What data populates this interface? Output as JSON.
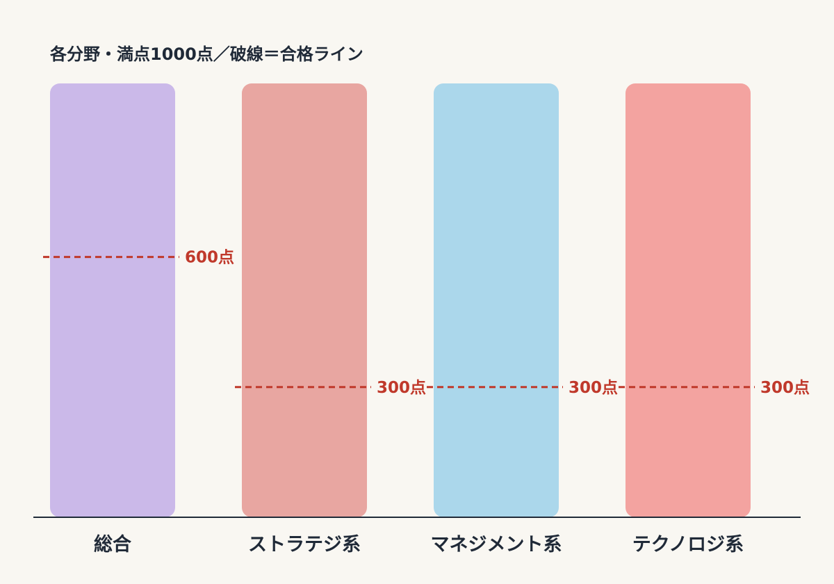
{
  "chart_data": {
    "type": "bar",
    "title": "各分野・満点1000点／破線＝合格ライン",
    "xlabel": "",
    "ylabel": "",
    "ylim": [
      0,
      1000
    ],
    "categories": [
      "総合",
      "ストラテジ系",
      "マネジメント系",
      "テクノロジ系"
    ],
    "values": [
      1000,
      1000,
      1000,
      1000
    ],
    "pass_lines": [
      {
        "category": "総合",
        "value": 600,
        "label": "600点"
      },
      {
        "category": "ストラテジ系",
        "value": 300,
        "label": "300点"
      },
      {
        "category": "マネジメント系",
        "value": 300,
        "label": "300点"
      },
      {
        "category": "テクノロジ系",
        "value": 300,
        "label": "300点"
      }
    ],
    "grid": false,
    "legend": "none"
  },
  "colors": {
    "bars": [
      "#cbb9e9",
      "#e8a6a1",
      "#abd7eb",
      "#f3a3a0"
    ],
    "pass_line": "#c0392b",
    "axis": "#1f2937",
    "text": "#1f2937",
    "background": "#f9f7f2"
  }
}
